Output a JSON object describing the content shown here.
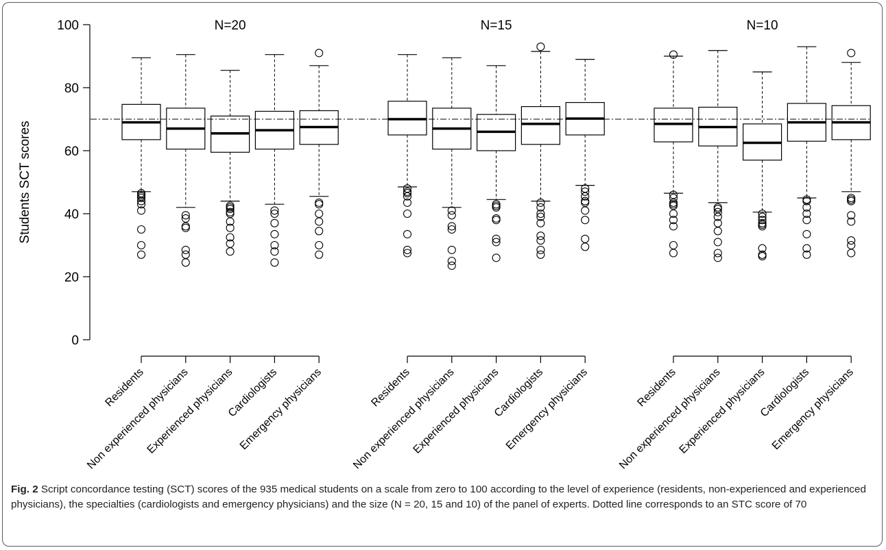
{
  "chart_data": {
    "type": "boxplot",
    "ylabel": "Students SCT scores",
    "ylim": [
      0,
      100
    ],
    "yticks": [
      0,
      20,
      40,
      60,
      80,
      100
    ],
    "reference_line": 70,
    "panels": [
      {
        "title": "N=20",
        "groups": [
          {
            "label": "Residents",
            "min": 47,
            "q1": 63.5,
            "median": 69,
            "q3": 74.7,
            "max": 89.5,
            "outliers": [
              46.5,
              46,
              45.5,
              45,
              44,
              43,
              41,
              35,
              30,
              27
            ]
          },
          {
            "label": "Non experienced physicians",
            "min": 42,
            "q1": 60.5,
            "median": 67,
            "q3": 73.5,
            "max": 90.5,
            "outliers": [
              39.5,
              38.5,
              36,
              35.5,
              28.5,
              27,
              24.5
            ]
          },
          {
            "label": "Experienced physicians",
            "min": 44,
            "q1": 59.5,
            "median": 65.5,
            "q3": 71,
            "max": 85.5,
            "outliers": [
              42.5,
              42,
              41.5,
              40.5,
              40,
              37.5,
              35.5,
              32.5,
              30.5,
              28
            ]
          },
          {
            "label": "Cardiologists",
            "min": 43,
            "q1": 60.5,
            "median": 66.5,
            "q3": 72.5,
            "max": 90.5,
            "outliers": [
              41,
              40,
              37,
              33.5,
              30,
              28,
              24.5
            ]
          },
          {
            "label": "Emergency physicians",
            "min": 45.5,
            "q1": 62,
            "median": 67.5,
            "q3": 72.7,
            "max": 87,
            "outliers": [
              91,
              43.5,
              43,
              40,
              37.5,
              34.5,
              30,
              27
            ]
          }
        ]
      },
      {
        "title": "N=15",
        "groups": [
          {
            "label": "Residents",
            "min": 48.5,
            "q1": 65,
            "median": 70,
            "q3": 75.7,
            "max": 90.5,
            "outliers": [
              48,
              47,
              46.5,
              45.5,
              43.5,
              40,
              33.5,
              28.5,
              27.5
            ]
          },
          {
            "label": "Non experienced physicians",
            "min": 42,
            "q1": 60.5,
            "median": 67,
            "q3": 73.5,
            "max": 89.5,
            "outliers": [
              41,
              39.5,
              36,
              35,
              28.5,
              25,
              23.5
            ]
          },
          {
            "label": "Experienced physicians",
            "min": 44.5,
            "q1": 60,
            "median": 66,
            "q3": 71.5,
            "max": 87,
            "outliers": [
              43,
              42.5,
              42,
              38.5,
              38,
              32,
              31,
              26
            ]
          },
          {
            "label": "Cardiologists",
            "min": 44,
            "q1": 62,
            "median": 68.5,
            "q3": 74,
            "max": 91.5,
            "outliers": [
              93,
              43.5,
              42,
              40,
              39,
              37,
              33,
              31.5,
              28.5,
              27
            ]
          },
          {
            "label": "Emergency physicians",
            "min": 49,
            "q1": 65,
            "median": 70.2,
            "q3": 75.3,
            "max": 89,
            "outliers": [
              48,
              47,
              45.5,
              44,
              43.5,
              41,
              38,
              32,
              29.5
            ]
          }
        ]
      },
      {
        "title": "N=10",
        "groups": [
          {
            "label": "Residents",
            "min": 46.5,
            "q1": 62.8,
            "median": 68.5,
            "q3": 73.5,
            "max": 90,
            "outliers": [
              90.5,
              46,
              45,
              43.5,
              43,
              42.5,
              40,
              38,
              36,
              30,
              27.5
            ]
          },
          {
            "label": "Non experienced physicians",
            "min": 43.5,
            "q1": 61.5,
            "median": 67.5,
            "q3": 73.8,
            "max": 91.8,
            "outliers": [
              42,
              41.5,
              40.5,
              39,
              37,
              34.5,
              31,
              27.5,
              26
            ]
          },
          {
            "label": "Experienced physicians",
            "min": 40.5,
            "q1": 57,
            "median": 62.5,
            "q3": 68.5,
            "max": 85,
            "outliers": [
              40,
              39,
              38,
              37,
              36.5,
              36,
              29,
              27,
              26.5
            ]
          },
          {
            "label": "Cardiologists",
            "min": 45,
            "q1": 63,
            "median": 69,
            "q3": 75,
            "max": 93,
            "outliers": [
              44.5,
              44,
              42,
              40,
              38,
              33.5,
              29,
              27
            ]
          },
          {
            "label": "Emergency physicians",
            "min": 47,
            "q1": 63.5,
            "median": 69,
            "q3": 74.3,
            "max": 88,
            "outliers": [
              91,
              45,
              44.5,
              44,
              39.5,
              37.5,
              31.5,
              30,
              27.5
            ]
          }
        ]
      }
    ]
  },
  "caption": {
    "fig_label": "Fig. 2",
    "text": " Script concordance testing (SCT) scores of the 935 medical students on a scale from zero to 100 according to the level of experience (residents, non-experienced and experienced physicians), the specialties (cardiologists and emergency physicians) and the size (N = 20, 15 and 10) of the panel of experts. Dotted line corresponds to an STC score of 70"
  }
}
